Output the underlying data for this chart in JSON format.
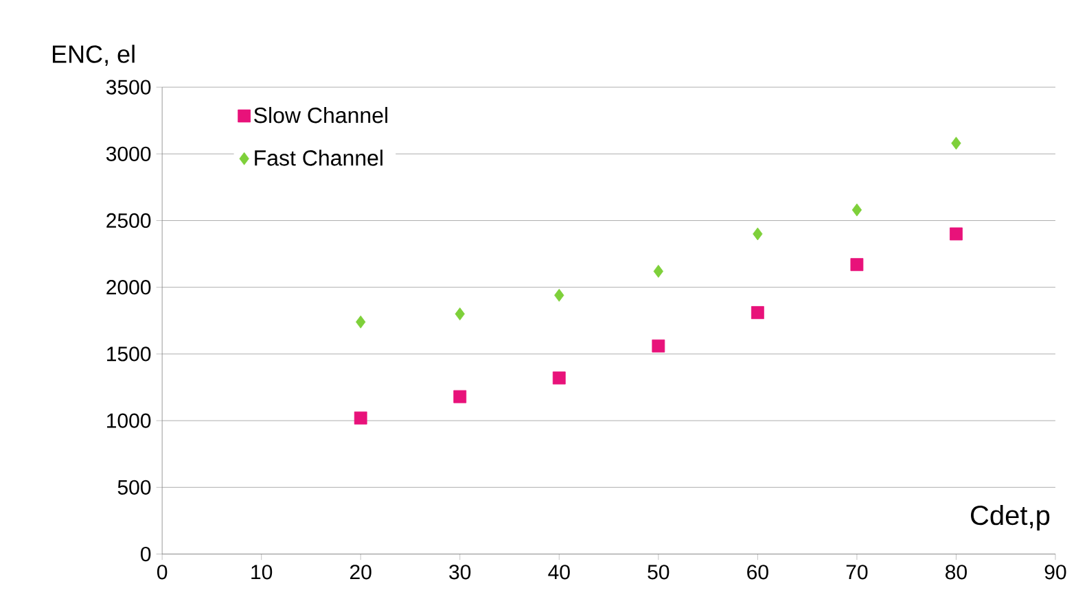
{
  "chart_data": {
    "type": "scatter",
    "xlabel": "Cdet,p",
    "ylabel": "ENC, el",
    "x": [
      20,
      30,
      40,
      50,
      60,
      70,
      80
    ],
    "series": [
      {
        "name": "Slow Channel",
        "color": "#e8127a",
        "marker": "square",
        "values": [
          1020,
          1180,
          1320,
          1560,
          1810,
          2170,
          2400
        ]
      },
      {
        "name": "Fast Channel",
        "color": "#7ed03a",
        "marker": "diamond",
        "values": [
          1740,
          1800,
          1940,
          2120,
          2400,
          2580,
          3080
        ]
      }
    ],
    "xlim": [
      0,
      90
    ],
    "xticks": [
      0,
      10,
      20,
      30,
      40,
      50,
      60,
      70,
      80,
      90
    ],
    "ylim": [
      0,
      3500
    ],
    "yticks": [
      0,
      500,
      1000,
      1500,
      2000,
      2500,
      3000,
      3500
    ],
    "grid": "y",
    "legend": "top left"
  }
}
